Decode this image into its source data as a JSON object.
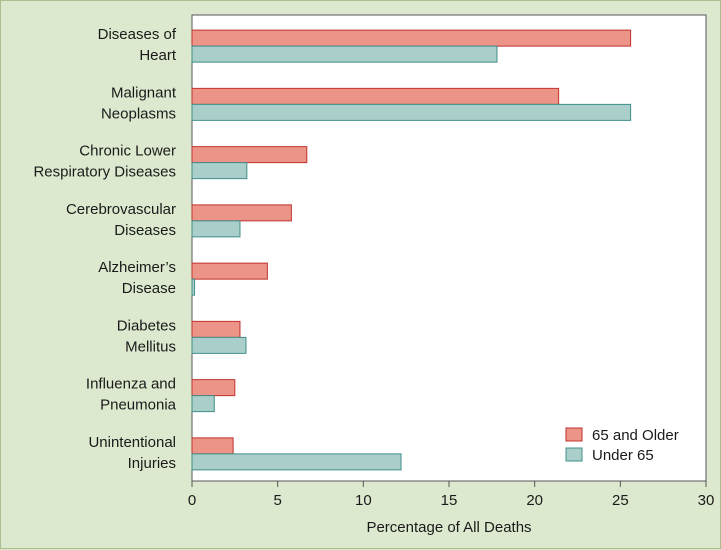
{
  "chart_data": {
    "type": "bar",
    "orientation": "horizontal",
    "categories": [
      [
        "Diseases of",
        "Heart"
      ],
      [
        "Malignant",
        "Neoplasms"
      ],
      [
        "Chronic Lower",
        "Respiratory Diseases"
      ],
      [
        "Cerebrovascular",
        "Diseases"
      ],
      [
        "Alzheimer’s",
        "Disease"
      ],
      [
        "Diabetes",
        "Mellitus"
      ],
      [
        "Influenza and",
        "Pneumonia"
      ],
      [
        "Unintentional",
        "Injuries"
      ]
    ],
    "series": [
      {
        "name": "65 and Older",
        "color": "#ec9488",
        "edge": "#c0332d",
        "values": [
          25.6,
          21.4,
          6.7,
          5.8,
          4.4,
          2.8,
          2.5,
          2.4
        ]
      },
      {
        "name": "Under 65",
        "color": "#aacfcb",
        "edge": "#3f8f8a",
        "values": [
          17.8,
          25.6,
          3.2,
          2.8,
          0.15,
          3.15,
          1.3,
          12.2
        ]
      }
    ],
    "xlabel": "Percentage of All Deaths",
    "ylabel": "",
    "xlim": [
      0,
      30
    ],
    "xticks": [
      0,
      5,
      10,
      15,
      20,
      25,
      30
    ],
    "legend_position": "bottom-right",
    "grid": false
  }
}
